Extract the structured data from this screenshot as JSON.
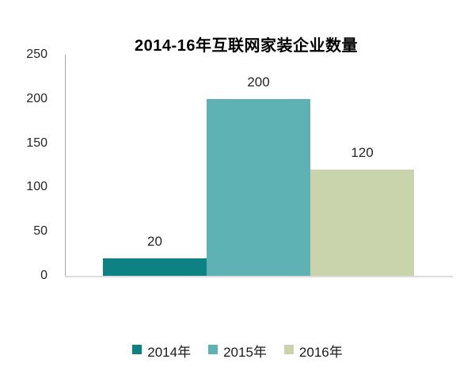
{
  "chart_data": {
    "type": "bar",
    "title": "2014-16年互联网家装企业数量",
    "categories": [
      "2014年",
      "2015年",
      "2016年"
    ],
    "values": [
      20,
      200,
      120
    ],
    "data_labels": [
      "20",
      "200",
      "120"
    ],
    "bar_colors": [
      "#0e8183",
      "#5fb2b4",
      "#c9d4ac"
    ],
    "xlabel": "",
    "ylabel": "",
    "ylim": [
      0,
      250
    ],
    "yticks": [
      0,
      50,
      100,
      150,
      200,
      250
    ],
    "grid": false,
    "legend_position": "bottom",
    "legend_entries": [
      "2014年",
      "2015年",
      "2016年"
    ],
    "axis_line_color": "#a3a3a3",
    "baseline_color": "#dcdcdc",
    "background_color": "#ffffff"
  }
}
